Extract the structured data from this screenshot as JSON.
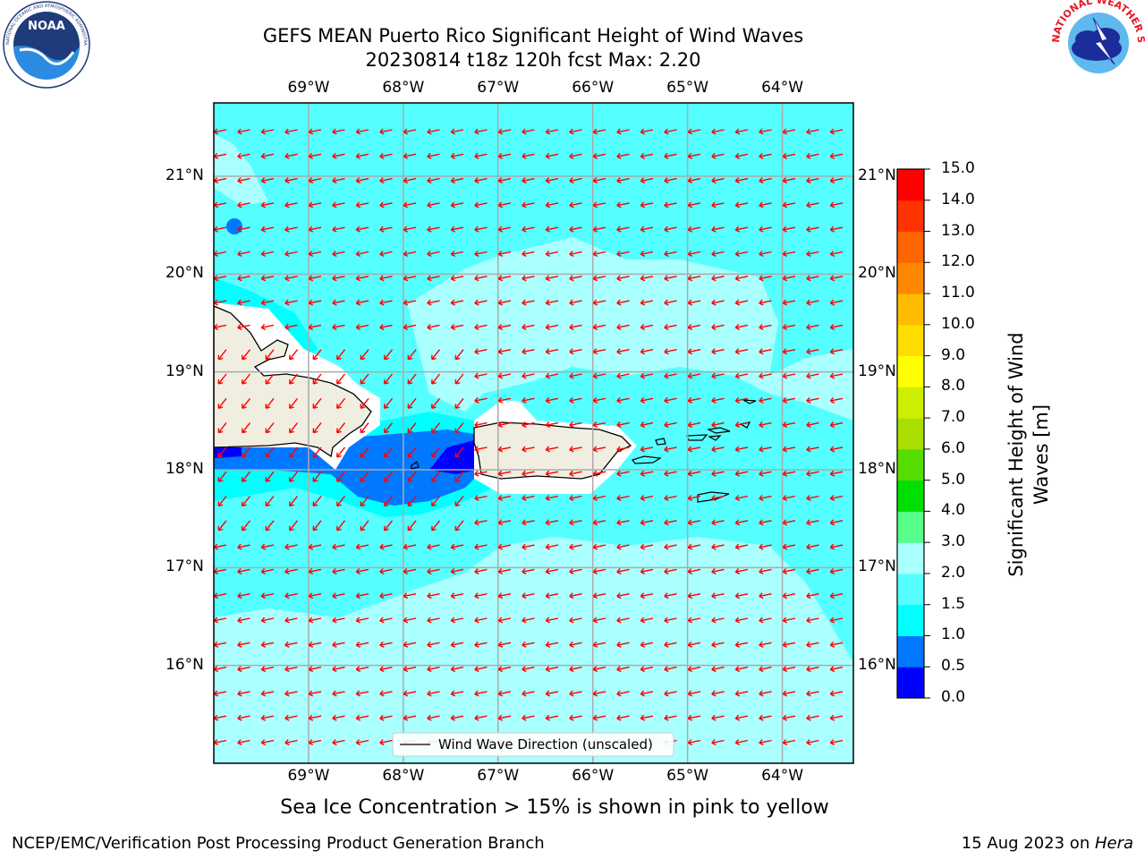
{
  "header": {
    "title": "GEFS MEAN Puerto Rico Significant Height of Wind Waves",
    "subtitle": "20230814 t18z 120h fcst   Max: 2.20"
  },
  "logos": {
    "left": "noaa-logo",
    "right": "nws-logo",
    "left_ring_text": "NATIONAL OCEANIC AND ATMOSPHERIC ADMINISTRATION · U.S. DEPARTMENT OF COMMERCE",
    "left_center_text": "NOAA",
    "right_ring_text": "NATIONAL WEATHER SERVICE"
  },
  "map": {
    "lon_labels": [
      "69°W",
      "68°W",
      "67°W",
      "66°W",
      "65°W",
      "64°W"
    ],
    "lon_values": [
      -69,
      -68,
      -67,
      -66,
      -65,
      -64
    ],
    "lat_labels": [
      "21°N",
      "20°N",
      "19°N",
      "18°N",
      "17°N",
      "16°N"
    ],
    "lat_values": [
      21,
      20,
      19,
      18,
      17,
      16
    ],
    "extent": {
      "lon_min": -70,
      "lon_max": -63.25,
      "lat_min": 15.0,
      "lat_max": 21.75
    },
    "legend_label": "Wind Wave Direction (unscaled)"
  },
  "colorbar": {
    "title_line1": "Significant Height of Wind",
    "title_line2": "Waves [m]",
    "ticks": [
      "0.0",
      "0.5",
      "1.0",
      "1.5",
      "2.0",
      "3.0",
      "4.0",
      "5.0",
      "6.0",
      "7.0",
      "8.0",
      "9.0",
      "10.0",
      "11.0",
      "12.0",
      "13.0",
      "14.0",
      "15.0"
    ],
    "colors": [
      "#0000ff",
      "#0078ff",
      "#00ffff",
      "#55ffff",
      "#aaffff",
      "#55ff88",
      "#00e000",
      "#55dd00",
      "#aadd00",
      "#ccee00",
      "#ffff00",
      "#ffdd00",
      "#ffbb00",
      "#ff8800",
      "#ff6600",
      "#ff3300",
      "#ff0000"
    ]
  },
  "footer": {
    "sea_ice_note": "Sea Ice Concentration > 15% is shown in pink to yellow",
    "branch": "NCEP/EMC/Verification Post Processing Product Generation Branch",
    "date": "15 Aug 2023 on ",
    "machine": "Hera"
  },
  "colors": {
    "land": "#f0eee0",
    "arrow": "#ff0000",
    "grid": "#aaaaaa"
  }
}
